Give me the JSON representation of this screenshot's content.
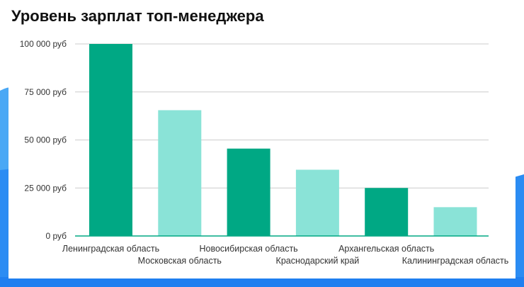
{
  "colors": {
    "bar_dark": "#00a884",
    "bar_light": "#8ae3d7",
    "grid": "#cccccc",
    "axis": "#00a884",
    "accent_blue": "#2b8cf3"
  },
  "chart_data": {
    "type": "bar",
    "title": "Уровень зарплат топ-менеджера",
    "categories": [
      "Ленинградская область",
      "Московская область",
      "Новосибирская область",
      "Краснодарский край",
      "Архангельская область",
      "Калининградская область"
    ],
    "values": [
      100000,
      65500,
      45500,
      34500,
      25000,
      15000
    ],
    "yticks": [
      "0 руб",
      "25 000 руб",
      "50 000 руб",
      "75 000 руб",
      "100 000 руб"
    ],
    "ytick_values": [
      0,
      25000,
      50000,
      75000,
      100000
    ],
    "ylim": [
      0,
      100000
    ],
    "grid": true,
    "legend": "none",
    "xlabel": "",
    "ylabel": ""
  }
}
